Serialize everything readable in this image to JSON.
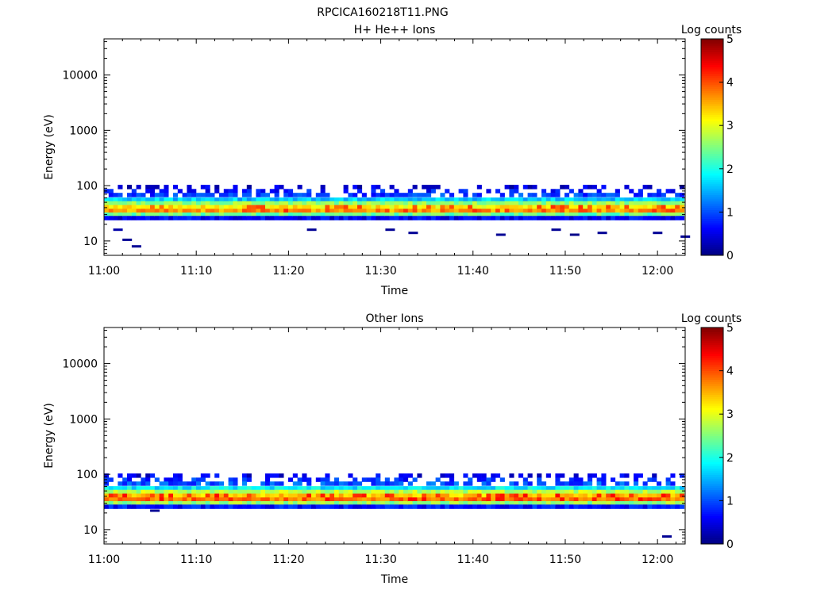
{
  "figure": {
    "title": "RPCICA160218T11.PNG"
  },
  "chart_data": [
    {
      "type": "heatmap",
      "title": "H+ He++ Ions",
      "xlabel": "Time",
      "ylabel": "Energy (eV)",
      "x_tick_labels": [
        "11:00",
        "11:10",
        "11:20",
        "11:30",
        "11:40",
        "11:50",
        "12:00"
      ],
      "x_tick_minutes": [
        0,
        10,
        20,
        30,
        40,
        50,
        60
      ],
      "xlim_minutes": [
        0,
        63
      ],
      "y_scale": "log",
      "ylim": [
        5.5,
        45000
      ],
      "y_tick_values": [
        10,
        100,
        1000,
        10000
      ],
      "y_tick_labels": [
        "10",
        "100",
        "1000",
        "10000"
      ],
      "colorbar": {
        "title": "Log counts",
        "range": [
          0,
          5
        ],
        "tick_labels": [
          "0",
          "1",
          "2",
          "3",
          "4",
          "5"
        ],
        "colormap": "jet"
      },
      "band": {
        "description_levels_log_counts": [
          {
            "energy_eV": 95,
            "level": 0.4
          },
          {
            "energy_eV": 80,
            "level": 0.7
          },
          {
            "energy_eV": 68,
            "level": 0.9
          },
          {
            "energy_eV": 56,
            "level": 1.6
          },
          {
            "energy_eV": 48,
            "level": 2.6
          },
          {
            "energy_eV": 41,
            "level": 3.2
          },
          {
            "energy_eV": 35,
            "level": 3.6
          },
          {
            "energy_eV": 30,
            "level": 2.4
          },
          {
            "energy_eV": 26,
            "level": 0.6
          }
        ],
        "peak_level": 4.0
      },
      "sparse_points": [
        {
          "minute": 1.0,
          "energy_eV": 16,
          "level": 0.2
        },
        {
          "minute": 2.0,
          "energy_eV": 10.5,
          "level": 0.1
        },
        {
          "minute": 3.0,
          "energy_eV": 8,
          "level": 0.1
        },
        {
          "minute": 22.0,
          "energy_eV": 16,
          "level": 0.1
        },
        {
          "minute": 30.5,
          "energy_eV": 16,
          "level": 0.1
        },
        {
          "minute": 33.0,
          "energy_eV": 14,
          "level": 0.1
        },
        {
          "minute": 42.5,
          "energy_eV": 13,
          "level": 0.1
        },
        {
          "minute": 48.5,
          "energy_eV": 16,
          "level": 0.1
        },
        {
          "minute": 50.5,
          "energy_eV": 13,
          "level": 0.05
        },
        {
          "minute": 53.5,
          "energy_eV": 14,
          "level": 0.1
        },
        {
          "minute": 59.5,
          "energy_eV": 14,
          "level": 0.1
        },
        {
          "minute": 62.5,
          "energy_eV": 12,
          "level": 0.1
        }
      ]
    },
    {
      "type": "heatmap",
      "title": "Other Ions",
      "xlabel": "Time",
      "ylabel": "Energy (eV)",
      "x_tick_labels": [
        "11:00",
        "11:10",
        "11:20",
        "11:30",
        "11:40",
        "11:50",
        "12:00"
      ],
      "x_tick_minutes": [
        0,
        10,
        20,
        30,
        40,
        50,
        60
      ],
      "xlim_minutes": [
        0,
        63
      ],
      "y_scale": "log",
      "ylim": [
        5.5,
        45000
      ],
      "y_tick_values": [
        10,
        100,
        1000,
        10000
      ],
      "y_tick_labels": [
        "10",
        "100",
        "1000",
        "10000"
      ],
      "colorbar": {
        "title": "Log counts",
        "range": [
          0,
          5
        ],
        "tick_labels": [
          "0",
          "1",
          "2",
          "3",
          "4",
          "5"
        ],
        "colormap": "jet"
      },
      "band": {
        "description_levels_log_counts": [
          {
            "energy_eV": 95,
            "level": 0.5
          },
          {
            "energy_eV": 80,
            "level": 0.8
          },
          {
            "energy_eV": 68,
            "level": 1.0
          },
          {
            "energy_eV": 56,
            "level": 1.8
          },
          {
            "energy_eV": 48,
            "level": 2.8
          },
          {
            "energy_eV": 41,
            "level": 3.4
          },
          {
            "energy_eV": 35,
            "level": 3.8
          },
          {
            "energy_eV": 30,
            "level": 2.6
          },
          {
            "energy_eV": 26,
            "level": 0.7
          }
        ],
        "peak_level": 4.2
      },
      "sparse_points": [
        {
          "minute": 5.0,
          "energy_eV": 22,
          "level": 0.1
        },
        {
          "minute": 60.5,
          "energy_eV": 7.5,
          "level": 0.1
        }
      ]
    }
  ]
}
